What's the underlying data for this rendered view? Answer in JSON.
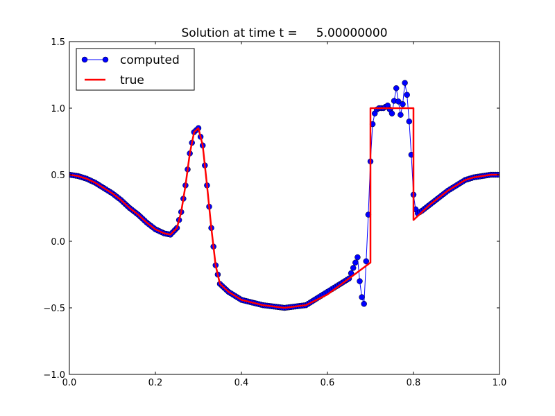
{
  "chart_data": {
    "type": "line",
    "title": "Solution at time t =     5.00000000",
    "xlabel": "",
    "ylabel": "",
    "xlim": [
      0.0,
      1.0
    ],
    "ylim": [
      -1.0,
      1.5
    ],
    "xticks": [
      0.0,
      0.2,
      0.4,
      0.6,
      0.8,
      1.0
    ],
    "xtick_labels": [
      "0.0",
      "0.2",
      "0.4",
      "0.6",
      "0.8",
      "1.0"
    ],
    "yticks": [
      -1.0,
      -0.5,
      0.0,
      0.5,
      1.0,
      1.5
    ],
    "ytick_labels": [
      "−1.0",
      "−0.5",
      "0.0",
      "0.5",
      "1.0",
      "1.5"
    ],
    "grid": false,
    "legend_position": "top-left",
    "series": [
      {
        "name": "computed",
        "color": "#0000ff",
        "style": "line-with-circle-markers",
        "x": [
          0.0,
          0.02,
          0.04,
          0.06,
          0.08,
          0.1,
          0.12,
          0.14,
          0.16,
          0.18,
          0.2,
          0.22,
          0.235,
          0.25,
          0.26,
          0.27,
          0.28,
          0.29,
          0.3,
          0.31,
          0.32,
          0.33,
          0.34,
          0.35,
          0.37,
          0.4,
          0.45,
          0.5,
          0.55,
          0.6,
          0.63,
          0.65,
          0.66,
          0.67,
          0.675,
          0.68,
          0.685,
          0.69,
          0.695,
          0.7,
          0.705,
          0.71,
          0.715,
          0.72,
          0.73,
          0.74,
          0.75,
          0.76,
          0.765,
          0.77,
          0.775,
          0.78,
          0.785,
          0.79,
          0.795,
          0.8,
          0.805,
          0.81,
          0.82,
          0.84,
          0.86,
          0.88,
          0.9,
          0.92,
          0.94,
          0.96,
          0.98,
          1.0
        ],
        "y": [
          0.5,
          0.49,
          0.47,
          0.44,
          0.4,
          0.36,
          0.31,
          0.25,
          0.2,
          0.14,
          0.09,
          0.06,
          0.05,
          0.1,
          0.22,
          0.42,
          0.66,
          0.82,
          0.85,
          0.72,
          0.42,
          0.1,
          -0.18,
          -0.32,
          -0.38,
          -0.44,
          -0.48,
          -0.5,
          -0.48,
          -0.38,
          -0.32,
          -0.28,
          -0.2,
          -0.12,
          -0.3,
          -0.42,
          -0.47,
          -0.15,
          0.2,
          0.6,
          0.88,
          0.96,
          0.99,
          1.0,
          1.0,
          1.02,
          0.96,
          1.15,
          1.05,
          0.95,
          1.03,
          1.19,
          1.1,
          0.9,
          0.65,
          0.35,
          0.24,
          0.21,
          0.23,
          0.28,
          0.33,
          0.38,
          0.42,
          0.46,
          0.48,
          0.49,
          0.5,
          0.5
        ]
      },
      {
        "name": "true",
        "color": "#ff0000",
        "style": "line",
        "x": [
          0.0,
          0.02,
          0.04,
          0.06,
          0.08,
          0.1,
          0.12,
          0.14,
          0.16,
          0.18,
          0.2,
          0.22,
          0.235,
          0.25,
          0.26,
          0.27,
          0.28,
          0.29,
          0.3,
          0.31,
          0.32,
          0.33,
          0.34,
          0.35,
          0.37,
          0.4,
          0.45,
          0.5,
          0.55,
          0.6,
          0.65,
          0.7,
          0.7,
          0.71,
          0.8,
          0.8,
          0.82,
          0.84,
          0.86,
          0.88,
          0.9,
          0.92,
          0.94,
          0.96,
          0.98,
          1.0
        ],
        "y": [
          0.5,
          0.49,
          0.47,
          0.44,
          0.4,
          0.36,
          0.31,
          0.25,
          0.2,
          0.14,
          0.09,
          0.06,
          0.05,
          0.1,
          0.22,
          0.42,
          0.66,
          0.82,
          0.85,
          0.72,
          0.42,
          0.1,
          -0.18,
          -0.32,
          -0.38,
          -0.44,
          -0.48,
          -0.5,
          -0.48,
          -0.4,
          -0.28,
          -0.16,
          1.0,
          1.0,
          1.0,
          0.16,
          0.22,
          0.28,
          0.33,
          0.38,
          0.42,
          0.46,
          0.48,
          0.49,
          0.5,
          0.5
        ]
      }
    ]
  }
}
